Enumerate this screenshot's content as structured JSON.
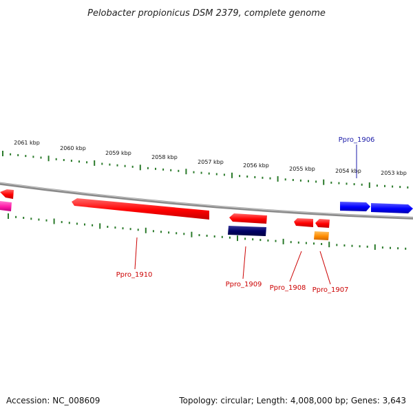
{
  "title": "Pelobacter propionicus DSM 2379, complete genome",
  "footer": {
    "accession": "Accession: NC_008609",
    "summary": "Topology: circular; Length: 4,008,000 bp; Genes: 3,643"
  },
  "scale_labels": [
    "2061 kbp",
    "2060 kbp",
    "2059 kbp",
    "2058 kbp",
    "2057 kbp",
    "2056 kbp",
    "2055 kbp",
    "2054 kbp",
    "2053 kbp"
  ],
  "gene_labels": [
    {
      "name": "Ppro_1906",
      "color": "#1a1aa8"
    },
    {
      "name": "Ppro_1910",
      "color": "#cc0000"
    },
    {
      "name": "Ppro_1909",
      "color": "#cc0000"
    },
    {
      "name": "Ppro_1908",
      "color": "#cc0000"
    },
    {
      "name": "Ppro_1907",
      "color": "#cc0000"
    }
  ],
  "colors": {
    "tick": "#2a7a2a",
    "backbone": "#808080",
    "reverse_gene": "#ff0000",
    "forward_gene": "#0000ff",
    "dark_gene": "#000066",
    "orange_gene": "#ff8c00",
    "magenta_gene": "#ff1aa8",
    "label_red": "#cc0000",
    "label_blue": "#1a1aa8"
  }
}
